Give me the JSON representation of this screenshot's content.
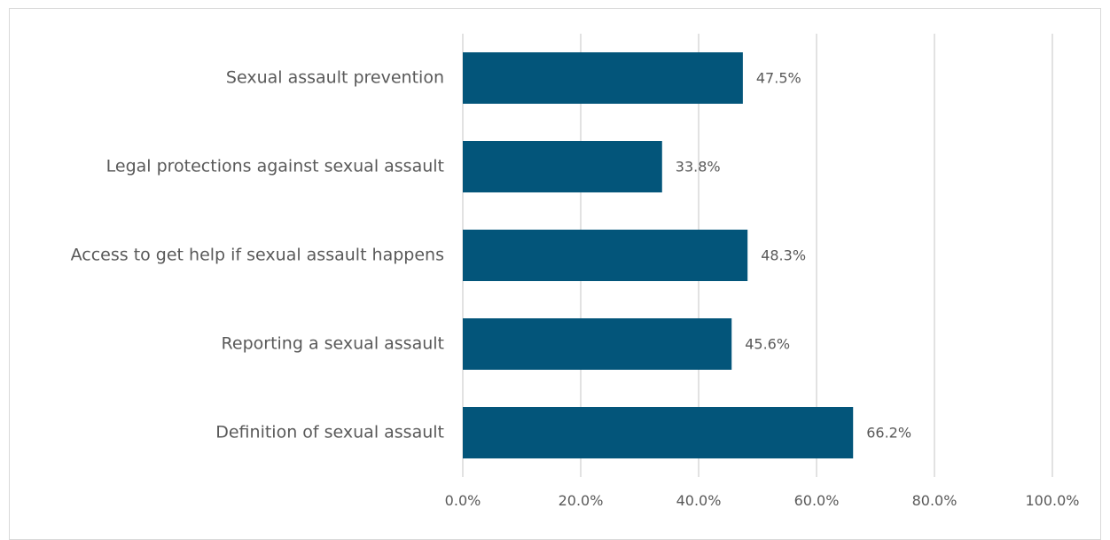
{
  "chart_data": {
    "type": "bar",
    "orientation": "horizontal",
    "categories": [
      "Sexual assault prevention",
      "Legal protections against sexual assault",
      "Access to get help if sexual assault happens",
      "Reporting a sexual assault",
      "Definition of sexual assault"
    ],
    "values": [
      47.5,
      33.8,
      48.3,
      45.6,
      66.2
    ],
    "value_labels": [
      "47.5%",
      "33.8%",
      "48.3%",
      "45.6%",
      "66.2%"
    ],
    "xlim": [
      0,
      100
    ],
    "xticks": [
      0,
      20,
      40,
      60,
      80,
      100
    ],
    "xtick_labels": [
      "0.0%",
      "20.0%",
      "40.0%",
      "60.0%",
      "80.0%",
      "100.0%"
    ],
    "title": "",
    "xlabel": "",
    "ylabel": "",
    "grid": "vertical",
    "legend": "none",
    "bar_color": "#03557A",
    "grid_color": "#d9d9d9",
    "text_color": "#595959"
  }
}
